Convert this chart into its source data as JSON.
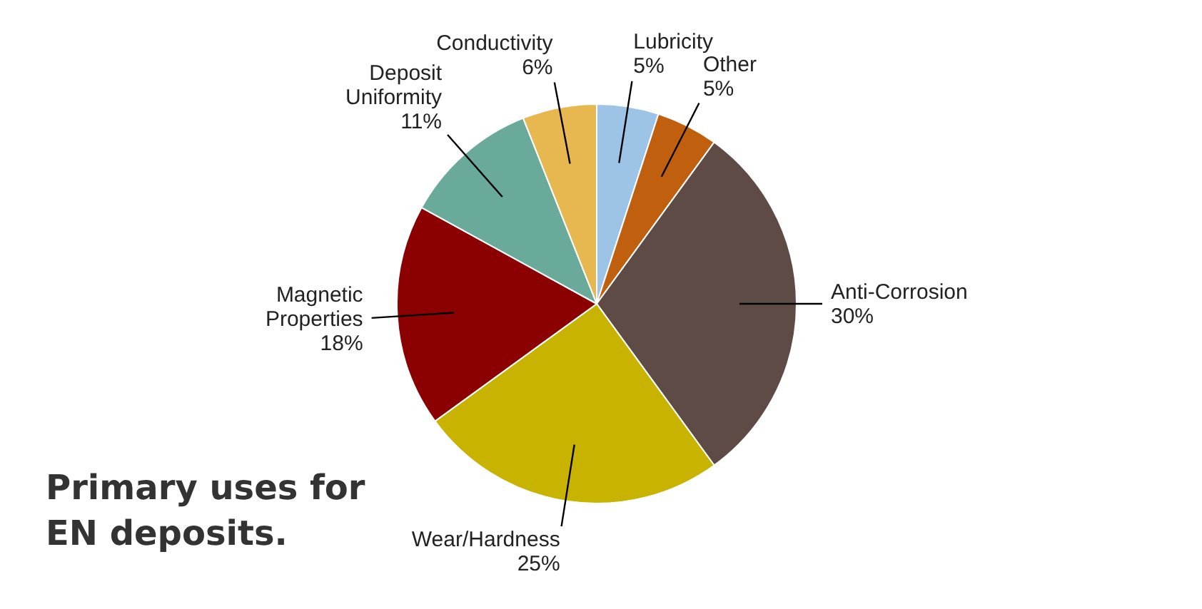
{
  "chart_data": {
    "type": "pie",
    "title": "Primary uses for EN deposits.",
    "categories": [
      "Lubricity",
      "Other",
      "Anti-Corrosion",
      "Wear/Hardness",
      "Magnetic Properties",
      "Deposit Uniformity",
      "Conductivity"
    ],
    "values": [
      5,
      5,
      30,
      25,
      18,
      11,
      6
    ],
    "value_labels": [
      "5%",
      "5%",
      "30%",
      "25%",
      "18%",
      "11%",
      "6%"
    ],
    "colors": [
      "#9dc3e6",
      "#c0600f",
      "#5e4b46",
      "#c8b400",
      "#8b0000",
      "#6aaa9a",
      "#e6b84f"
    ]
  }
}
